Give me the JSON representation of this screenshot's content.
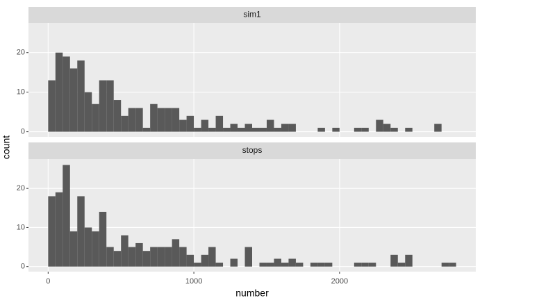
{
  "chart_data": {
    "type": "histogram",
    "xlabel": "number",
    "ylabel": "count",
    "bins": [
      0,
      50,
      100,
      150,
      200,
      250,
      300,
      350,
      400,
      450,
      500,
      550,
      600,
      650,
      700,
      750,
      800,
      850,
      900,
      950,
      1000,
      1050,
      1100,
      1150,
      1200,
      1250,
      1300,
      1350,
      1400,
      1450,
      1500,
      1550,
      1600,
      1650,
      1700,
      1750,
      1800,
      1850,
      1900,
      1950,
      2000,
      2050,
      2100,
      2150,
      2200,
      2250,
      2300,
      2350,
      2400,
      2450,
      2500,
      2550,
      2600,
      2650,
      2700,
      2750,
      2800
    ],
    "color": "#595959",
    "xlim": [
      -135,
      2935
    ],
    "xticks": [
      0,
      1000,
      2000
    ],
    "ylim": [
      -1.3,
      27.5
    ],
    "yticks": [
      0,
      10,
      20
    ],
    "grid": true,
    "series": [
      {
        "name": "sim1",
        "values": [
          13,
          20,
          19,
          16,
          18,
          10,
          7,
          13,
          13,
          8,
          4,
          6,
          6,
          1,
          7,
          6,
          6,
          6,
          3,
          4,
          1,
          3,
          1,
          4,
          1,
          2,
          1,
          2,
          1,
          1,
          3,
          1,
          2,
          2,
          0,
          0,
          0,
          1,
          0,
          1,
          0,
          0,
          1,
          1,
          0,
          3,
          2,
          1,
          0,
          1,
          0,
          0,
          0,
          2,
          0,
          0
        ]
      },
      {
        "name": "stops",
        "values": [
          18,
          19,
          26,
          9,
          18,
          10,
          9,
          14,
          5,
          4,
          8,
          5,
          6,
          4,
          5,
          5,
          5,
          7,
          5,
          3,
          1,
          3,
          5,
          1,
          0,
          2,
          0,
          5,
          0,
          1,
          1,
          2,
          1,
          2,
          1,
          0,
          1,
          1,
          1,
          0,
          0,
          0,
          1,
          1,
          1,
          0,
          0,
          3,
          1,
          3,
          0,
          0,
          0,
          0,
          1,
          1
        ]
      }
    ]
  }
}
